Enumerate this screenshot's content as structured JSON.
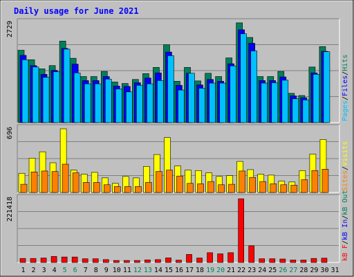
{
  "chart_data": {
    "type": "bar",
    "title": "Daily usage for June 2021",
    "categories": [
      "1",
      "2",
      "3",
      "4",
      "5",
      "6",
      "7",
      "8",
      "9",
      "10",
      "11",
      "12",
      "13",
      "14",
      "15",
      "16",
      "17",
      "18",
      "19",
      "20",
      "21",
      "22",
      "23",
      "24",
      "25",
      "26",
      "27",
      "28",
      "29",
      "30",
      "31"
    ],
    "weekend_days": [
      5,
      6,
      12,
      13,
      19,
      20,
      26,
      27
    ],
    "colors": {
      "background": "#C0C0C0",
      "title": "#0000FF",
      "hits": "#00805C",
      "files": "#0000FF",
      "pages": "#00C0FF",
      "visits": "#FFFF00",
      "sites": "#FF8000",
      "kb_f": "#FF0000",
      "kb_in": "#0000FF",
      "kb_out": "#00805C",
      "weekday_label": "#000000",
      "weekend_label": "#00805C"
    },
    "panels": [
      {
        "name": "hits-files-pages",
        "scale_label": "2729",
        "ymax": 2729,
        "legend": [
          {
            "text": "Pages",
            "color": "#00C0FF"
          },
          {
            "text": "/",
            "color": "#000000"
          },
          {
            "text": "Files",
            "color": "#0000FF"
          },
          {
            "text": "/",
            "color": "#000000"
          },
          {
            "text": "Hits",
            "color": "#00805C"
          }
        ],
        "series": [
          {
            "name": "Hits",
            "color": "#00805C",
            "values": [
              1980,
              1720,
              1470,
              1560,
              2230,
              1760,
              1260,
              1260,
              1400,
              1110,
              1070,
              1180,
              1340,
              1510,
              2130,
              1130,
              1510,
              1140,
              1350,
              1260,
              1770,
              2730,
              2330,
              1260,
              1260,
              1400,
              800,
              740,
              1520,
              2080,
              0
            ]
          },
          {
            "name": "Files",
            "color": "#0000FF",
            "values": [
              1840,
              1560,
              1320,
              1430,
              2030,
              1600,
              1150,
              1150,
              1260,
              1000,
              990,
              1090,
              1220,
              1360,
              1930,
              1020,
              1350,
              1030,
              1180,
              1130,
              1610,
              2540,
              2170,
              1150,
              1150,
              1250,
              730,
              680,
              1360,
              1950,
              0
            ]
          },
          {
            "name": "Pages",
            "color": "#00C0FF",
            "values": [
              1720,
              1520,
              1240,
              1390,
              2010,
              1360,
              1060,
              1060,
              1190,
              920,
              840,
              1020,
              1060,
              1150,
              1830,
              890,
              1350,
              940,
              1080,
              1080,
              1550,
              2430,
              1960,
              1080,
              1090,
              1160,
              650,
              620,
              1320,
              1940,
              0
            ]
          }
        ]
      },
      {
        "name": "visits-sites",
        "scale_label": "696",
        "ymax": 696,
        "legend": [
          {
            "text": "Sites",
            "color": "#FF8000"
          },
          {
            "text": "/",
            "color": "#000000"
          },
          {
            "text": "Visits",
            "color": "#FFFF00"
          }
        ],
        "series": [
          {
            "name": "Visits",
            "color": "#FFFF00",
            "values": [
              210,
              375,
              445,
              325,
              696,
              245,
              200,
              220,
              160,
              100,
              175,
              160,
              285,
              415,
              600,
              290,
              245,
              240,
              215,
              175,
              185,
              340,
              250,
              200,
              190,
              125,
              115,
              240,
              420,
              580,
              0
            ]
          },
          {
            "name": "Sites",
            "color": "#FF8000",
            "values": [
              90,
              225,
              235,
              230,
              310,
              215,
              110,
              110,
              85,
              65,
              65,
              65,
              110,
              230,
              245,
              180,
              100,
              95,
              120,
              85,
              90,
              235,
              165,
              120,
              95,
              85,
              80,
              140,
              240,
              255,
              0
            ]
          }
        ]
      },
      {
        "name": "kbytes",
        "scale_label": "221418",
        "ymax": 221418,
        "legend": [
          {
            "text": "kB F",
            "color": "#FF0000"
          },
          {
            "text": "/",
            "color": "#000000"
          },
          {
            "text": "kB In",
            "color": "#0000FF"
          },
          {
            "text": "/",
            "color": "#000000"
          },
          {
            "text": "kB Out",
            "color": "#00805C"
          }
        ],
        "series": [
          {
            "name": "kB F",
            "color": "#FF0000",
            "values": [
              14000,
              14000,
              15500,
              21000,
              19000,
              19000,
              13000,
              13000,
              10000,
              7000,
              7000,
              7000,
              9000,
              10000,
              16000,
              8000,
              28000,
              15500,
              34000,
              30000,
              34000,
              221418,
              58000,
              13000,
              13000,
              12000,
              8500,
              8500,
              14000,
              15000,
              0
            ]
          }
        ]
      }
    ]
  }
}
